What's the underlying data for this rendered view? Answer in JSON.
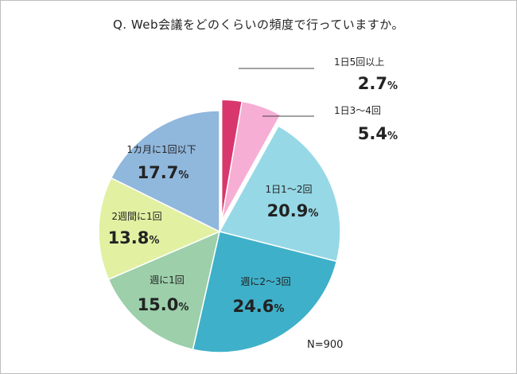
{
  "chart_data": {
    "type": "pie",
    "title": "Q. Web会議をどのくらいの頻度で行っていますか。",
    "note": "N=900",
    "slices": [
      {
        "label": "1日5回以上",
        "value": 2.7,
        "display": "2.7",
        "unit": "%",
        "color": "#d8376e",
        "exploded": true
      },
      {
        "label": "1日3〜4回",
        "value": 5.4,
        "display": "5.4",
        "unit": "%",
        "color": "#f7aed4",
        "exploded": true
      },
      {
        "label": "1日1〜2回",
        "value": 20.9,
        "display": "20.9",
        "unit": "%",
        "color": "#96d8e6",
        "exploded": false
      },
      {
        "label": "週に2〜3回",
        "value": 24.6,
        "display": "24.6",
        "unit": "%",
        "color": "#3fb0c9",
        "exploded": false
      },
      {
        "label": "週に1回",
        "value": 15.0,
        "display": "15.0",
        "unit": "%",
        "color": "#9ccfaa",
        "exploded": false
      },
      {
        "label": "2週間に1回",
        "value": 13.8,
        "display": "13.8",
        "unit": "%",
        "color": "#e2f0a2",
        "exploded": false
      },
      {
        "label": "1カ月に1回以下",
        "value": 17.7,
        "display": "17.7",
        "unit": "%",
        "color": "#90b7dc",
        "exploded": false
      }
    ]
  }
}
